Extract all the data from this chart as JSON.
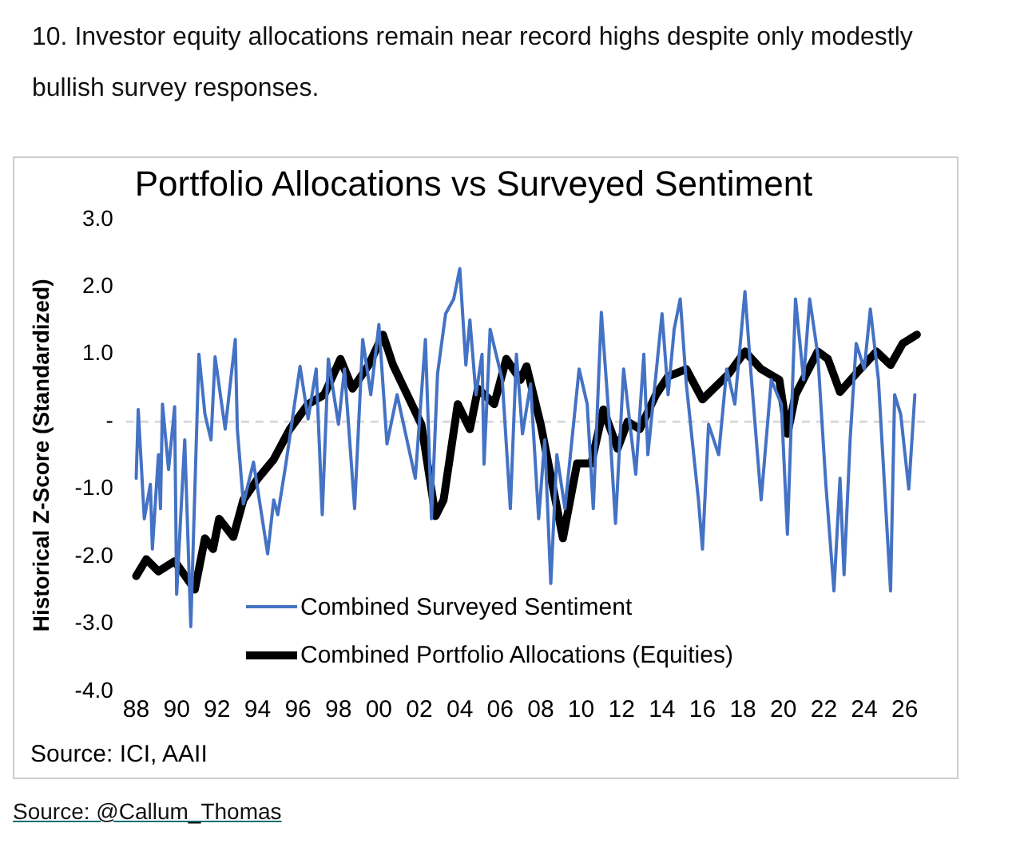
{
  "chart_data": {
    "type": "line",
    "title": "Portfolio Allocations vs Surveyed Sentiment",
    "ylabel": "Historical Z-Score (Standardized)",
    "annotations": [
      "10. Investor equity allocations remain near record highs despite only modestly bullish survey responses.",
      "Source: ICI, AAII",
      "Source: @Callum_Thomas"
    ],
    "series": [
      {
        "name": "Combined Surveyed Sentiment",
        "color": "#4472c4",
        "x": [
          1988.0,
          1988.1,
          1988.4,
          1988.7,
          1988.8,
          1989.1,
          1989.2,
          1989.3,
          1989.6,
          1989.9,
          1990.0,
          1990.4,
          1990.7,
          1991.1,
          1991.4,
          1991.7,
          1991.9,
          1992.4,
          1992.9,
          1993.0,
          1993.3,
          1993.8,
          1994.5,
          1994.8,
          1995.0,
          1995.4,
          1996.1,
          1996.5,
          1996.9,
          1997.2,
          1997.5,
          1998.0,
          1998.3,
          1998.8,
          1999.2,
          1999.6,
          2000.0,
          2000.4,
          2000.9,
          2001.8,
          2002.3,
          2002.6,
          2002.9,
          2003.3,
          2003.7,
          2004.0,
          2004.3,
          2004.5,
          2004.8,
          2005.1,
          2005.2,
          2005.5,
          2006.1,
          2006.5,
          2006.8,
          2007.1,
          2007.5,
          2007.9,
          2008.2,
          2008.5,
          2008.8,
          2009.2,
          2009.9,
          2010.3,
          2010.6,
          2011.0,
          2011.4,
          2011.7,
          2012.1,
          2012.7,
          2013.1,
          2013.3,
          2014.0,
          2014.3,
          2014.6,
          2014.9,
          2015.2,
          2015.8,
          2016.0,
          2016.3,
          2016.8,
          2017.2,
          2017.6,
          2018.1,
          2018.4,
          2018.9,
          2019.4,
          2019.9,
          2020.2,
          2020.6,
          2021.0,
          2021.3,
          2021.7,
          2022.1,
          2022.5,
          2022.8,
          2023.0,
          2023.3,
          2023.6,
          2024.0,
          2024.3,
          2024.7,
          2025.3,
          2025.5,
          2025.8,
          2026.2,
          2026.5
        ],
        "values": [
          -0.84,
          0.18,
          -1.44,
          -0.93,
          -1.89,
          -0.49,
          -1.29,
          0.26,
          -0.71,
          0.22,
          -2.56,
          -0.27,
          -3.04,
          1.0,
          0.11,
          -0.27,
          0.96,
          -0.11,
          1.22,
          -0.11,
          -1.22,
          -0.6,
          -1.96,
          -1.16,
          -1.38,
          -0.63,
          0.82,
          0.04,
          0.78,
          -1.38,
          0.93,
          -0.04,
          0.78,
          -1.29,
          1.22,
          0.4,
          1.44,
          -0.33,
          0.4,
          -0.84,
          1.22,
          -1.44,
          0.71,
          1.6,
          1.82,
          2.27,
          0.84,
          1.51,
          0.4,
          1.0,
          -0.63,
          1.37,
          0.62,
          -1.29,
          1.0,
          -0.18,
          0.56,
          -1.44,
          -0.27,
          -2.4,
          -0.49,
          -1.29,
          0.78,
          0.26,
          -1.29,
          1.62,
          -0.04,
          -1.51,
          0.78,
          -0.78,
          1.0,
          -0.49,
          1.6,
          0.4,
          1.37,
          1.82,
          0.56,
          -1.16,
          -1.89,
          -0.04,
          -0.49,
          0.78,
          0.26,
          1.93,
          0.71,
          -1.16,
          0.62,
          0.26,
          -1.67,
          1.82,
          0.62,
          1.82,
          1.0,
          -0.93,
          -2.51,
          -0.84,
          -2.27,
          -0.27,
          1.16,
          0.78,
          1.67,
          0.62,
          -2.51,
          0.4,
          0.11,
          -1.0,
          0.4
        ]
      },
      {
        "name": "Combined Portfolio Allocations (Equities)",
        "color": "#000000",
        "x": [
          1988.0,
          1988.5,
          1989.1,
          1989.9,
          1990.9,
          1991.4,
          1991.8,
          1992.1,
          1992.8,
          1993.3,
          1994.0,
          1994.8,
          1995.6,
          1996.5,
          1997.3,
          1998.1,
          1998.7,
          1999.5,
          2000.2,
          2000.7,
          2001.4,
          2002.1,
          2002.8,
          2003.2,
          2003.9,
          2004.5,
          2004.9,
          2005.7,
          2006.3,
          2007.0,
          2007.3,
          2008.0,
          2009.1,
          2009.8,
          2010.5,
          2011.1,
          2011.8,
          2012.3,
          2012.9,
          2013.7,
          2014.3,
          2015.2,
          2016.0,
          2017.3,
          2018.1,
          2018.9,
          2019.8,
          2020.2,
          2020.6,
          2021.7,
          2022.2,
          2022.8,
          2023.8,
          2024.6,
          2025.3,
          2025.9,
          2026.6
        ],
        "values": [
          -2.29,
          -2.04,
          -2.22,
          -2.07,
          -2.49,
          -1.73,
          -1.89,
          -1.44,
          -1.71,
          -1.16,
          -0.85,
          -0.56,
          -0.11,
          0.26,
          0.4,
          0.93,
          0.49,
          0.84,
          1.29,
          0.84,
          0.4,
          -0.04,
          -1.4,
          -1.16,
          0.26,
          -0.11,
          0.49,
          0.26,
          0.93,
          0.62,
          0.82,
          -0.04,
          -1.73,
          -0.62,
          -0.62,
          0.18,
          -0.4,
          0,
          -0.11,
          0.4,
          0.67,
          0.78,
          0.33,
          0.71,
          1.04,
          0.78,
          0.62,
          -0.18,
          0.4,
          1.04,
          0.93,
          0.44,
          0.78,
          1.04,
          0.84,
          1.16,
          1.29
        ]
      }
    ],
    "xlim": [
      1987.5,
      2027
    ],
    "xticks": [
      {
        "value": 1988,
        "label": "88"
      },
      {
        "value": 1990,
        "label": "90"
      },
      {
        "value": 1992,
        "label": "92"
      },
      {
        "value": 1994,
        "label": "94"
      },
      {
        "value": 1996,
        "label": "96"
      },
      {
        "value": 1998,
        "label": "98"
      },
      {
        "value": 2000,
        "label": "00"
      },
      {
        "value": 2002,
        "label": "02"
      },
      {
        "value": 2004,
        "label": "04"
      },
      {
        "value": 2006,
        "label": "06"
      },
      {
        "value": 2008,
        "label": "08"
      },
      {
        "value": 2010,
        "label": "10"
      },
      {
        "value": 2012,
        "label": "12"
      },
      {
        "value": 2014,
        "label": "14"
      },
      {
        "value": 2016,
        "label": "16"
      },
      {
        "value": 2018,
        "label": "18"
      },
      {
        "value": 2020,
        "label": "20"
      },
      {
        "value": 2022,
        "label": "22"
      },
      {
        "value": 2024,
        "label": "24"
      },
      {
        "value": 2026,
        "label": "26"
      }
    ],
    "ylim": [
      -4,
      3
    ],
    "yticks": [
      {
        "value": -4,
        "label": "-4.0"
      },
      {
        "value": -3,
        "label": "-3.0"
      },
      {
        "value": -2,
        "label": "-2.0"
      },
      {
        "value": -1,
        "label": "-1.0"
      },
      {
        "value": 0,
        "label": "-"
      },
      {
        "value": 1,
        "label": "1.0"
      },
      {
        "value": 2,
        "label": "2.0"
      },
      {
        "value": 3,
        "label": "3.0"
      }
    ],
    "ref_lines": [
      {
        "axis": "y",
        "value": 0,
        "color": "#d9d9d9",
        "line_style": "dashed"
      }
    ],
    "grid": false,
    "legend": "bottom left",
    "marker": "none",
    "line_style": "solid"
  }
}
